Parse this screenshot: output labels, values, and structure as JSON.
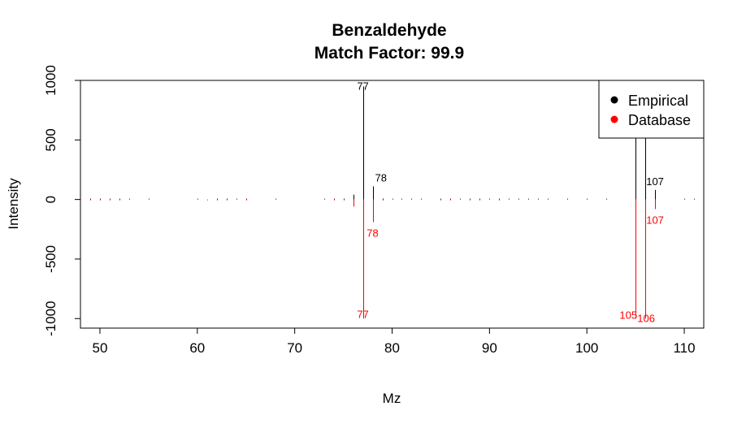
{
  "chart_data": {
    "type": "bar",
    "title": "Benzaldehyde",
    "subtitle": "Match Factor: 99.9",
    "xlabel": "Mz",
    "ylabel": "Intensity",
    "xlim": [
      48,
      112
    ],
    "ylim": [
      -1080,
      1000
    ],
    "xticks": [
      50,
      60,
      70,
      80,
      90,
      100,
      110
    ],
    "yticks": [
      -1000,
      -500,
      0,
      500,
      1000
    ],
    "grid": false,
    "legend_position": "top-right",
    "series": [
      {
        "name": "Empirical",
        "color": "#000000",
        "peaks": [
          {
            "mz": 49,
            "intensity": 2
          },
          {
            "mz": 50,
            "intensity": 4
          },
          {
            "mz": 51,
            "intensity": 6
          },
          {
            "mz": 52,
            "intensity": 3
          },
          {
            "mz": 53,
            "intensity": 2
          },
          {
            "mz": 55,
            "intensity": 2
          },
          {
            "mz": 60,
            "intensity": 2
          },
          {
            "mz": 62,
            "intensity": 3
          },
          {
            "mz": 63,
            "intensity": 4
          },
          {
            "mz": 64,
            "intensity": 2
          },
          {
            "mz": 65,
            "intensity": 2
          },
          {
            "mz": 68,
            "intensity": 2
          },
          {
            "mz": 73,
            "intensity": 2
          },
          {
            "mz": 74,
            "intensity": 4
          },
          {
            "mz": 75,
            "intensity": 3
          },
          {
            "mz": 76,
            "intensity": 40
          },
          {
            "mz": 77,
            "intensity": 950
          },
          {
            "mz": 78,
            "intensity": 110
          },
          {
            "mz": 79,
            "intensity": 8
          },
          {
            "mz": 80,
            "intensity": 4
          },
          {
            "mz": 81,
            "intensity": 6
          },
          {
            "mz": 82,
            "intensity": 6
          },
          {
            "mz": 83,
            "intensity": 5
          },
          {
            "mz": 85,
            "intensity": 4
          },
          {
            "mz": 86,
            "intensity": 4
          },
          {
            "mz": 87,
            "intensity": 5
          },
          {
            "mz": 88,
            "intensity": 4
          },
          {
            "mz": 89,
            "intensity": 6
          },
          {
            "mz": 90,
            "intensity": 4
          },
          {
            "mz": 91,
            "intensity": 5
          },
          {
            "mz": 92,
            "intensity": 3
          },
          {
            "mz": 93,
            "intensity": 3
          },
          {
            "mz": 94,
            "intensity": 4
          },
          {
            "mz": 95,
            "intensity": 4
          },
          {
            "mz": 96,
            "intensity": 3
          },
          {
            "mz": 98,
            "intensity": 2
          },
          {
            "mz": 100,
            "intensity": 2
          },
          {
            "mz": 102,
            "intensity": 2
          },
          {
            "mz": 105,
            "intensity": 1000
          },
          {
            "mz": 106,
            "intensity": 1000
          },
          {
            "mz": 107,
            "intensity": 80
          },
          {
            "mz": 110,
            "intensity": 4
          },
          {
            "mz": 111,
            "intensity": 3
          }
        ],
        "labels": [
          {
            "mz": 77,
            "text": "77"
          },
          {
            "mz": 78,
            "text": "78"
          },
          {
            "mz": 107,
            "text": "107"
          }
        ]
      },
      {
        "name": "Database",
        "color": "#ff0000",
        "peaks": [
          {
            "mz": 49,
            "intensity": -3
          },
          {
            "mz": 50,
            "intensity": -4
          },
          {
            "mz": 51,
            "intensity": -6
          },
          {
            "mz": 52,
            "intensity": -3
          },
          {
            "mz": 61,
            "intensity": -2
          },
          {
            "mz": 62,
            "intensity": -3
          },
          {
            "mz": 63,
            "intensity": -4
          },
          {
            "mz": 65,
            "intensity": -2
          },
          {
            "mz": 74,
            "intensity": -4
          },
          {
            "mz": 75,
            "intensity": -3
          },
          {
            "mz": 76,
            "intensity": -60
          },
          {
            "mz": 77,
            "intensity": -1000
          },
          {
            "mz": 78,
            "intensity": -190
          },
          {
            "mz": 79,
            "intensity": -8
          },
          {
            "mz": 85,
            "intensity": -4
          },
          {
            "mz": 86,
            "intensity": -5
          },
          {
            "mz": 88,
            "intensity": -4
          },
          {
            "mz": 89,
            "intensity": -5
          },
          {
            "mz": 91,
            "intensity": -3
          },
          {
            "mz": 105,
            "intensity": -1000
          },
          {
            "mz": 106,
            "intensity": -1000
          },
          {
            "mz": 107,
            "intensity": -80
          }
        ],
        "labels": [
          {
            "mz": 78,
            "text": "78"
          },
          {
            "mz": 107,
            "text": "107"
          },
          {
            "mz": 77,
            "text": "77"
          },
          {
            "mz": 105,
            "text": "105"
          },
          {
            "mz": 106,
            "text": "106"
          }
        ]
      }
    ]
  }
}
